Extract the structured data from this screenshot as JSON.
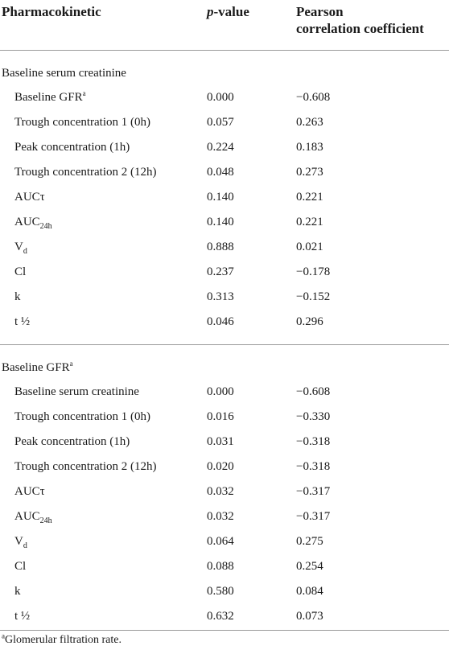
{
  "table": {
    "headers": {
      "pharmacokinetic": "Pharmacokinetic",
      "p_value_italic": "p",
      "p_value_rest": "-value",
      "pearson_line1": "Pearson",
      "pearson_line2": "correlation coefficient"
    },
    "sections": [
      {
        "title": "Baseline serum creatinine",
        "title_sup": "",
        "rows": [
          {
            "label": "Baseline GFR",
            "sup": "a",
            "sub": "",
            "p": "0.000",
            "r": "−0.608"
          },
          {
            "label": "Trough concentration 1 (0h)",
            "sup": "",
            "sub": "",
            "p": "0.057",
            "r": "0.263"
          },
          {
            "label": "Peak concentration (1h)",
            "sup": "",
            "sub": "",
            "p": "0.224",
            "r": "0.183"
          },
          {
            "label": "Trough concentration 2 (12h)",
            "sup": "",
            "sub": "",
            "p": "0.048",
            "r": "0.273"
          },
          {
            "label": "AUCτ",
            "sup": "",
            "sub": "",
            "p": "0.140",
            "r": "0.221"
          },
          {
            "label": "AUC",
            "sup": "",
            "sub": "24h",
            "p": "0.140",
            "r": "0.221"
          },
          {
            "label": "V",
            "sup": "",
            "sub": "d",
            "p": "0.888",
            "r": "0.021"
          },
          {
            "label": "Cl",
            "sup": "",
            "sub": "",
            "p": "0.237",
            "r": "−0.178"
          },
          {
            "label": "k",
            "sup": "",
            "sub": "",
            "p": "0.313",
            "r": "−0.152"
          },
          {
            "label": "t ½",
            "sup": "",
            "sub": "",
            "p": "0.046",
            "r": "0.296"
          }
        ]
      },
      {
        "title": "Baseline GFR",
        "title_sup": "a",
        "rows": [
          {
            "label": "Baseline serum creatinine",
            "sup": "",
            "sub": "",
            "p": "0.000",
            "r": "−0.608"
          },
          {
            "label": "Trough concentration 1 (0h)",
            "sup": "",
            "sub": "",
            "p": "0.016",
            "r": "−0.330"
          },
          {
            "label": "Peak concentration (1h)",
            "sup": "",
            "sub": "",
            "p": "0.031",
            "r": "−0.318"
          },
          {
            "label": "Trough concentration 2 (12h)",
            "sup": "",
            "sub": "",
            "p": "0.020",
            "r": "−0.318"
          },
          {
            "label": "AUCτ",
            "sup": "",
            "sub": "",
            "p": "0.032",
            "r": "−0.317"
          },
          {
            "label": "AUC",
            "sup": "",
            "sub": "24h",
            "p": "0.032",
            "r": "−0.317"
          },
          {
            "label": "V",
            "sup": "",
            "sub": "d",
            "p": "0.064",
            "r": "0.275"
          },
          {
            "label": "Cl",
            "sup": "",
            "sub": "",
            "p": "0.088",
            "r": "0.254"
          },
          {
            "label": "k",
            "sup": "",
            "sub": "",
            "p": "0.580",
            "r": "0.084"
          },
          {
            "label": "t ½",
            "sup": "",
            "sub": "",
            "p": "0.632",
            "r": "0.073"
          }
        ]
      }
    ],
    "footnote": {
      "marker": "a",
      "text": "Glomerular filtration rate."
    }
  }
}
